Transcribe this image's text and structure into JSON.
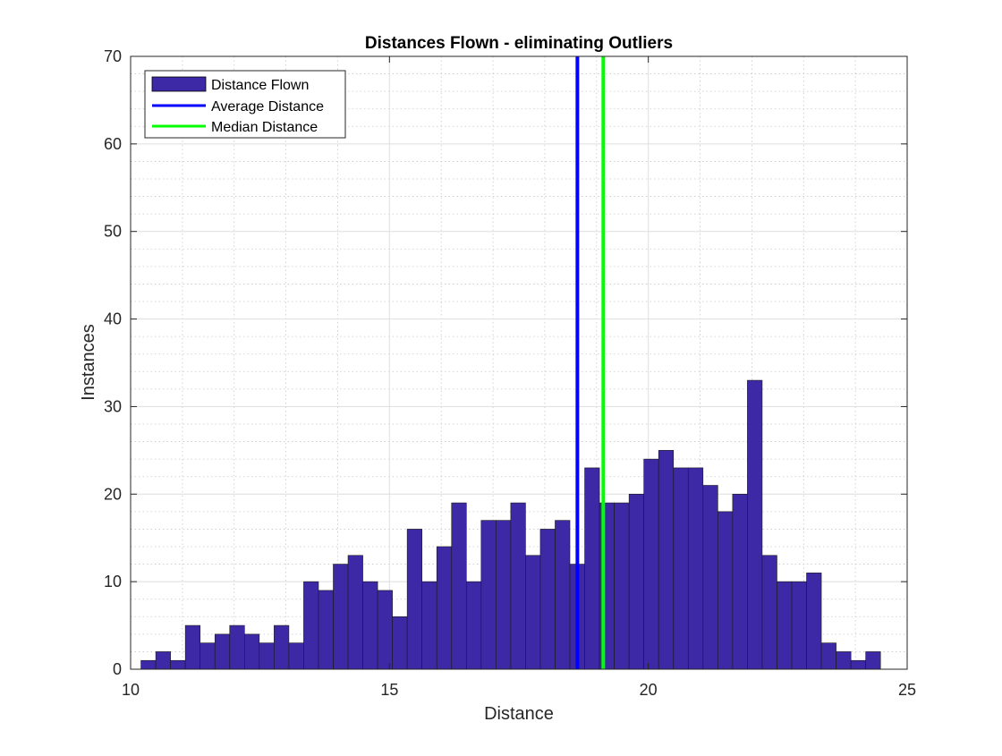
{
  "chart_data": {
    "type": "bar",
    "title": "Distances Flown - eliminating Outliers",
    "xlabel": "Distance",
    "ylabel": "Instances",
    "xlim": [
      10,
      25
    ],
    "ylim": [
      0,
      70
    ],
    "xticks": [
      10,
      15,
      20,
      25
    ],
    "yticks": [
      0,
      10,
      20,
      30,
      40,
      50,
      60,
      70
    ],
    "grid": true,
    "minor_grid": true,
    "legend_location": "top-left",
    "bins": {
      "start": 10.2,
      "width": 0.2857,
      "counts": [
        1,
        2,
        1,
        5,
        3,
        4,
        5,
        4,
        3,
        5,
        3,
        10,
        9,
        12,
        13,
        10,
        9,
        6,
        16,
        10,
        14,
        19,
        10,
        17,
        17,
        19,
        13,
        16,
        17,
        12,
        23,
        19,
        19,
        20,
        24,
        25,
        23,
        23,
        21,
        18,
        20,
        33,
        13,
        10,
        10,
        11,
        3,
        2,
        1,
        2
      ]
    },
    "series": [
      {
        "name": "Distance Flown",
        "kind": "histogram",
        "color": "#3d28a6"
      },
      {
        "name": "Average Distance",
        "kind": "vline",
        "x": 18.63,
        "color": "#0000ff"
      },
      {
        "name": "Median Distance",
        "kind": "vline",
        "x": 19.13,
        "color": "#00ff00"
      }
    ]
  }
}
